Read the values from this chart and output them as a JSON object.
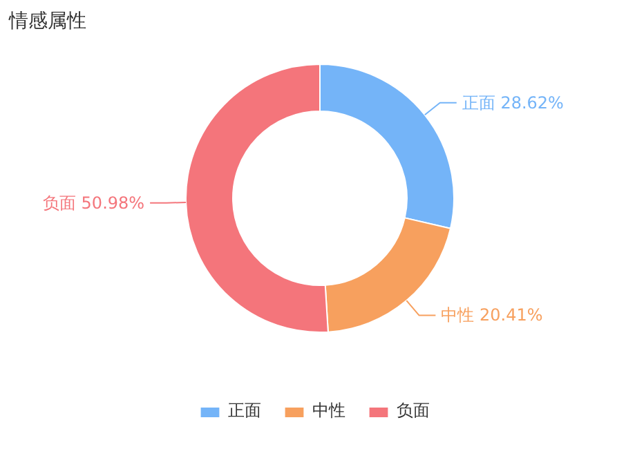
{
  "chart_data": {
    "type": "donut",
    "title": "情感属性",
    "categories": [
      "正面",
      "中性",
      "负面"
    ],
    "values": [
      28.62,
      20.41,
      50.98
    ],
    "colors": [
      "#74b4f8",
      "#f7a05e",
      "#f4757b"
    ],
    "value_labels": [
      "正面 28.62%",
      "中性 20.41%",
      "负面 50.98%"
    ],
    "legend": "bottom"
  }
}
